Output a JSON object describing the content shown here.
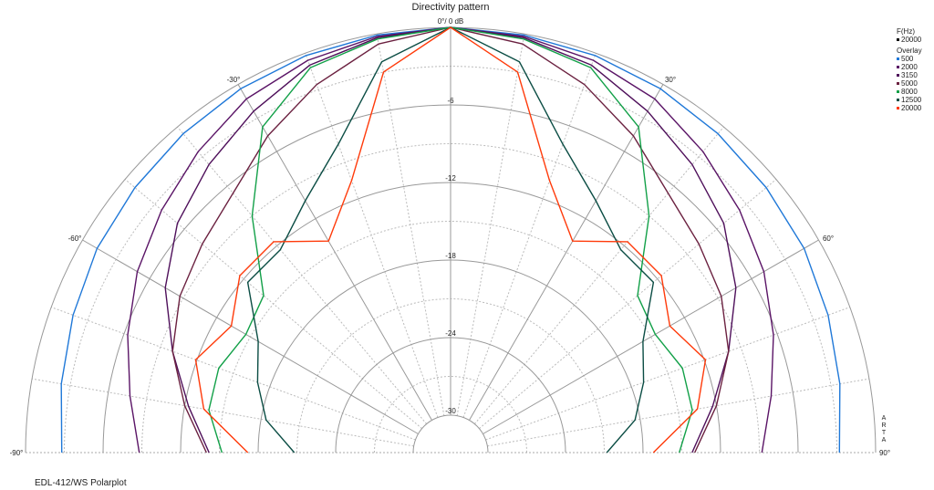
{
  "chart_data": {
    "type": "polar",
    "title": "Directivity pattern",
    "radial_axis_unit": "dB",
    "radial_range": [
      -30,
      0
    ],
    "radial_ticks": [
      "-6",
      "-12",
      "-18",
      "-24",
      "-30"
    ],
    "top_label": "0°/ 0 dB",
    "angle_range": [
      -90,
      90
    ],
    "angle_tick_labels": [
      "-90°",
      "-60°",
      "-30°",
      "30°",
      "60°",
      "90°"
    ],
    "grid": true,
    "angles": [
      -90,
      -80,
      -70,
      -60,
      -50,
      -40,
      -30,
      -20,
      -10,
      0,
      10,
      20,
      30,
      40,
      50,
      60,
      70,
      80,
      90
    ],
    "series": [
      {
        "name": "500",
        "color": "#1f78d8",
        "values": [
          -2.8,
          -2.3,
          -1.8,
          -1.3,
          -1.0,
          -0.7,
          -0.4,
          -0.2,
          -0.1,
          0,
          -0.1,
          -0.2,
          -0.4,
          -0.7,
          -1.0,
          -1.3,
          -1.8,
          -2.3,
          -2.8
        ]
      },
      {
        "name": "2000",
        "color": "#5a1466",
        "values": [
          -8.8,
          -7.7,
          -6.3,
          -4.9,
          -3.7,
          -2.5,
          -1.3,
          -0.6,
          -0.2,
          0,
          -0.2,
          -0.6,
          -1.3,
          -2.5,
          -3.7,
          -4.9,
          -6.3,
          -7.7,
          -8.8
        ]
      },
      {
        "name": "3150",
        "color": "#4e0f5a",
        "values": [
          -14.2,
          -12.3,
          -10.0,
          -7.4,
          -5.3,
          -3.8,
          -2.4,
          -1.0,
          -0.3,
          0,
          -0.3,
          -1.0,
          -2.4,
          -3.8,
          -5.3,
          -7.4,
          -10.0,
          -12.3,
          -14.2
        ]
      },
      {
        "name": "5000",
        "color": "#6b2140",
        "values": [
          -14.0,
          -12.0,
          -10.0,
          -8.7,
          -7.8,
          -6.7,
          -4.6,
          -2.6,
          -0.8,
          0,
          -0.8,
          -2.6,
          -4.6,
          -6.7,
          -7.8,
          -8.7,
          -10.0,
          -12.0,
          -14.0
        ]
      },
      {
        "name": "8000",
        "color": "#12a048",
        "values": [
          -15.2,
          -13.9,
          -13.8,
          -14.6,
          -14.0,
          -9.0,
          -3.8,
          -1.2,
          -0.4,
          0,
          -0.4,
          -1.2,
          -3.8,
          -9.0,
          -14.0,
          -14.6,
          -13.8,
          -13.9,
          -15.2
        ]
      },
      {
        "name": "12500",
        "color": "#0b4d44",
        "values": [
          -20.8,
          -18.4,
          -17.0,
          -15.7,
          -12.4,
          -12.4,
          -10.4,
          -7.5,
          -2.2,
          0,
          -2.2,
          -7.5,
          -10.4,
          -12.4,
          -12.4,
          -15.7,
          -17.0,
          -18.4,
          -20.8
        ]
      },
      {
        "name": "20000",
        "color": "#ff3a0a",
        "values": [
          -17.2,
          -13.5,
          -11.9,
          -13.3,
          -11.6,
          -11.6,
          -14.0,
          -10.5,
          -3.0,
          0,
          -3.0,
          -10.5,
          -14.0,
          -11.6,
          -11.6,
          -13.3,
          -11.9,
          -13.5,
          -17.2
        ]
      }
    ],
    "legend": {
      "placement": "top-right",
      "header": "F(Hz)",
      "current": "20000",
      "current_color": "#000000",
      "overlay_label": "Overlay"
    }
  },
  "side_text": "ARTA",
  "footer": "EDL-412/WS Polarplot"
}
